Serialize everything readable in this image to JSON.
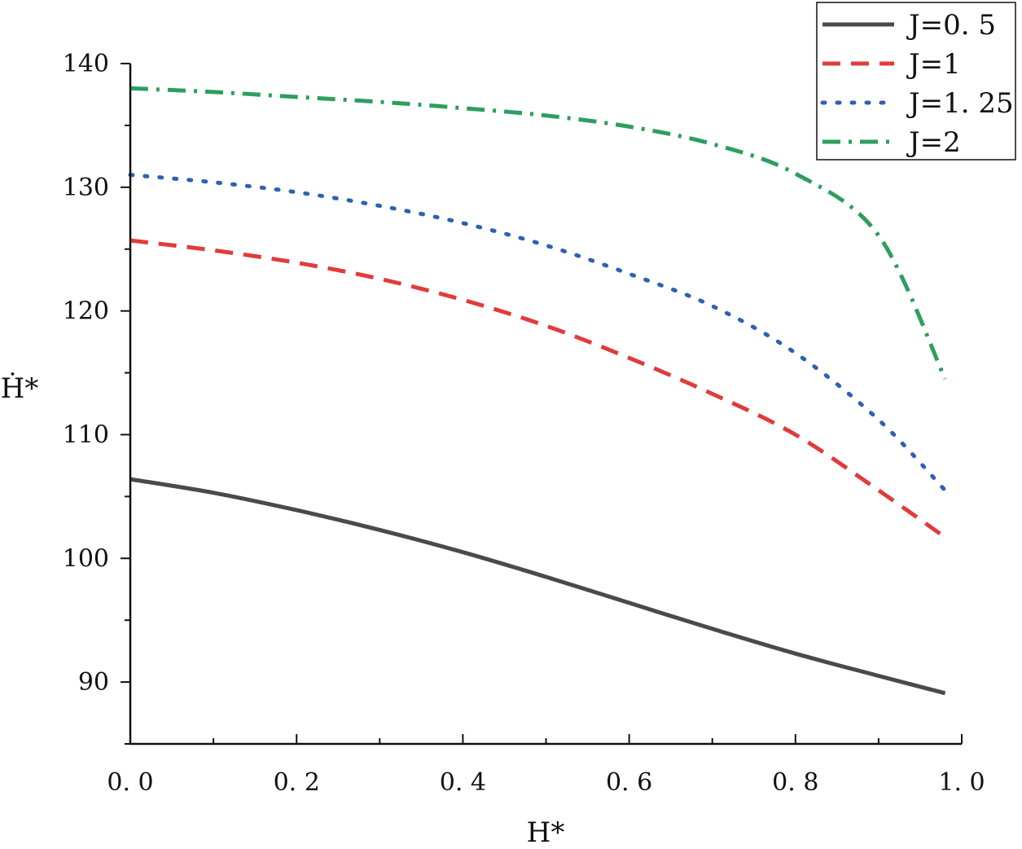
{
  "chart_data": {
    "type": "line",
    "xlabel": "H*",
    "ylabel": "Ḣ*",
    "xlim": [
      0.0,
      1.0
    ],
    "ylim": [
      85,
      140
    ],
    "xticks": [
      0.0,
      0.2,
      0.4,
      0.6,
      0.8,
      1.0
    ],
    "xtick_labels": [
      "0. 0",
      "0. 2",
      "0. 4",
      "0. 6",
      "0. 8",
      "1. 0"
    ],
    "yticks": [
      90,
      100,
      110,
      120,
      130,
      140
    ],
    "ytick_labels": [
      "90",
      "100",
      "110",
      "120",
      "130",
      "140"
    ],
    "x_minor_step": 0.1,
    "y_minor_step": 5,
    "grid": false,
    "legend_position": "top-right",
    "x": [
      0.0,
      0.1,
      0.2,
      0.3,
      0.4,
      0.5,
      0.6,
      0.7,
      0.8,
      0.9,
      0.98
    ],
    "series": [
      {
        "name": "J=0. 5",
        "color": "#4a4a4a",
        "dash": "solid",
        "values": [
          106.4,
          105.3,
          103.9,
          102.3,
          100.5,
          98.5,
          96.4,
          94.3,
          92.3,
          90.5,
          89.1
        ]
      },
      {
        "name": "J=1",
        "color": "#e03c3c",
        "dash": "dashed",
        "values": [
          125.7,
          124.9,
          123.9,
          122.6,
          120.9,
          118.8,
          116.2,
          113.3,
          110.0,
          105.5,
          101.7
        ]
      },
      {
        "name": "J=1. 25",
        "color": "#2e62b0",
        "dash": "dotted",
        "values": [
          131.0,
          130.4,
          129.6,
          128.5,
          127.1,
          125.3,
          123.0,
          120.4,
          116.6,
          111.2,
          105.5
        ]
      },
      {
        "name": "J=2",
        "color": "#2e9e5e",
        "dash": "dashdot",
        "values": [
          138.0,
          137.7,
          137.3,
          136.9,
          136.4,
          135.8,
          134.9,
          133.5,
          131.1,
          126.1,
          114.5
        ]
      }
    ]
  }
}
